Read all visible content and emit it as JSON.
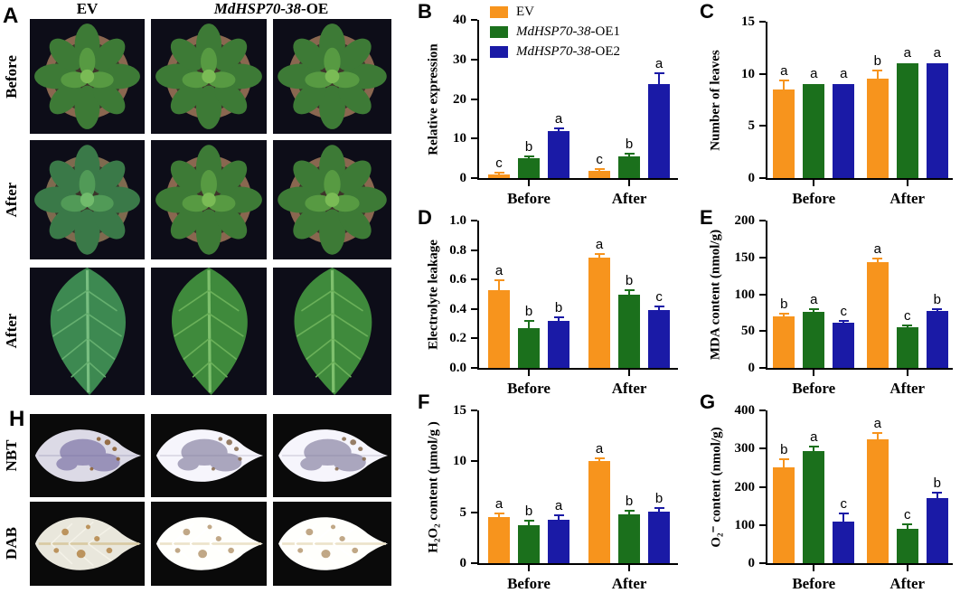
{
  "panels": {
    "a": {
      "label": "A",
      "col_header_1": "EV",
      "col_header_2_italic": "MdHSP70-38",
      "col_header_2_roman": "-OE",
      "row_labels": [
        "Before",
        "After",
        "After"
      ]
    },
    "h": {
      "label": "H",
      "row_labels": [
        "NBT",
        "DAB"
      ]
    }
  },
  "colors": {
    "ev": "#F7941D",
    "oe1": "#1B701C",
    "oe2": "#1A1AA6",
    "axis": "#000000",
    "photo_bg_a": "#0D0D18",
    "photo_bg_h": "#0A0A0A"
  },
  "chart_data": [
    {
      "panel": "B",
      "type": "bar",
      "ylabel": "Relative expression",
      "ylim": [
        0,
        40
      ],
      "yticks": [
        "0",
        "10",
        "20",
        "30",
        "40"
      ],
      "categories": [
        "Before",
        "After"
      ],
      "legend": true,
      "series": [
        {
          "name": "EV",
          "name_italic": "",
          "name_roman": "EV",
          "color": "#F7941D",
          "values": [
            0.9,
            1.8
          ],
          "errors": [
            0.15,
            0.3
          ],
          "letters": [
            "c",
            "c"
          ]
        },
        {
          "name": "MdHSP70-38-OE1",
          "name_italic": "MdHSP70-38",
          "name_roman": "-OE1",
          "color": "#1B701C",
          "values": [
            5.0,
            5.5
          ],
          "errors": [
            0.3,
            0.35
          ],
          "letters": [
            "b",
            "b"
          ]
        },
        {
          "name": "MdHSP70-38-OE2",
          "name_italic": "MdHSP70-38",
          "name_roman": "-OE2",
          "color": "#1A1AA6",
          "values": [
            11.8,
            23.8
          ],
          "errors": [
            0.5,
            2.4
          ],
          "letters": [
            "a",
            "a"
          ]
        }
      ]
    },
    {
      "panel": "C",
      "type": "bar",
      "ylabel": "Number of leaves",
      "ylim": [
        0,
        15
      ],
      "yticks": [
        "0",
        "5",
        "10",
        "15"
      ],
      "categories": [
        "Before",
        "After"
      ],
      "legend": false,
      "series": [
        {
          "name": "EV",
          "color": "#F7941D",
          "values": [
            8.5,
            9.5
          ],
          "errors": [
            0.8,
            0.7
          ],
          "letters": [
            "a",
            "b"
          ]
        },
        {
          "name": "MdHSP70-38-OE1",
          "color": "#1B701C",
          "values": [
            9,
            11
          ],
          "errors": [
            0,
            0
          ],
          "letters": [
            "a",
            "a"
          ]
        },
        {
          "name": "MdHSP70-38-OE2",
          "color": "#1A1AA6",
          "values": [
            9,
            11
          ],
          "errors": [
            0,
            0
          ],
          "letters": [
            "a",
            "a"
          ]
        }
      ]
    },
    {
      "panel": "D",
      "type": "bar",
      "ylabel": "Electrolyte leakage",
      "ylim": [
        0,
        1.0
      ],
      "yticks": [
        "0.0",
        "0.2",
        "0.4",
        "0.6",
        "0.8",
        "1.0"
      ],
      "categories": [
        "Before",
        "After"
      ],
      "legend": false,
      "series": [
        {
          "name": "EV",
          "color": "#F7941D",
          "values": [
            0.53,
            0.75
          ],
          "errors": [
            0.06,
            0.02
          ],
          "letters": [
            "a",
            "a"
          ]
        },
        {
          "name": "MdHSP70-38-OE1",
          "color": "#1B701C",
          "values": [
            0.27,
            0.5
          ],
          "errors": [
            0.04,
            0.02
          ],
          "letters": [
            "b",
            "b"
          ]
        },
        {
          "name": "MdHSP70-38-OE2",
          "color": "#1A1AA6",
          "values": [
            0.32,
            0.39
          ],
          "errors": [
            0.02,
            0.02
          ],
          "letters": [
            "b",
            "c"
          ]
        }
      ]
    },
    {
      "panel": "E",
      "type": "bar",
      "ylabel": "MDA content (nmol/g)",
      "ylim": [
        0,
        200
      ],
      "yticks": [
        "0",
        "50",
        "100",
        "150",
        "200"
      ],
      "categories": [
        "Before",
        "After"
      ],
      "legend": false,
      "series": [
        {
          "name": "EV",
          "color": "#F7941D",
          "values": [
            70,
            143
          ],
          "errors": [
            2,
            4
          ],
          "letters": [
            "b",
            "a"
          ]
        },
        {
          "name": "MdHSP70-38-OE1",
          "color": "#1B701C",
          "values": [
            76,
            55
          ],
          "errors": [
            3,
            2
          ],
          "letters": [
            "a",
            "c"
          ]
        },
        {
          "name": "MdHSP70-38-OE2",
          "color": "#1A1AA6",
          "values": [
            61,
            77
          ],
          "errors": [
            2,
            2
          ],
          "letters": [
            "c",
            "b"
          ]
        }
      ]
    },
    {
      "panel": "F",
      "type": "bar",
      "ylabel": "H₂O₂ content (μmol/g )",
      "ylim": [
        0,
        15
      ],
      "yticks": [
        "0",
        "5",
        "10",
        "15"
      ],
      "categories": [
        "Before",
        "After"
      ],
      "legend": false,
      "series": [
        {
          "name": "EV",
          "color": "#F7941D",
          "values": [
            4.5,
            10.0
          ],
          "errors": [
            0.3,
            0.25
          ],
          "letters": [
            "a",
            "a"
          ]
        },
        {
          "name": "MdHSP70-38-OE1",
          "color": "#1B701C",
          "values": [
            3.7,
            4.8
          ],
          "errors": [
            0.35,
            0.3
          ],
          "letters": [
            "b",
            "b"
          ]
        },
        {
          "name": "MdHSP70-38-OE2",
          "color": "#1A1AA6",
          "values": [
            4.3,
            5.1
          ],
          "errors": [
            0.3,
            0.25
          ],
          "letters": [
            "a",
            "b"
          ]
        }
      ]
    },
    {
      "panel": "G",
      "type": "bar",
      "ylabel": "O₂⁻ content (nmol/g)",
      "ylim": [
        0,
        400
      ],
      "yticks": [
        "0",
        "100",
        "200",
        "300",
        "400"
      ],
      "categories": [
        "Before",
        "After"
      ],
      "legend": false,
      "series": [
        {
          "name": "EV",
          "color": "#F7941D",
          "values": [
            250,
            325
          ],
          "errors": [
            20,
            13
          ],
          "letters": [
            "b",
            "a"
          ]
        },
        {
          "name": "MdHSP70-38-OE1",
          "color": "#1B701C",
          "values": [
            293,
            90
          ],
          "errors": [
            10,
            10
          ],
          "letters": [
            "a",
            "c"
          ]
        },
        {
          "name": "MdHSP70-38-OE2",
          "color": "#1A1AA6",
          "values": [
            108,
            170
          ],
          "errors": [
            20,
            12
          ],
          "letters": [
            "c",
            "b"
          ]
        }
      ]
    }
  ]
}
